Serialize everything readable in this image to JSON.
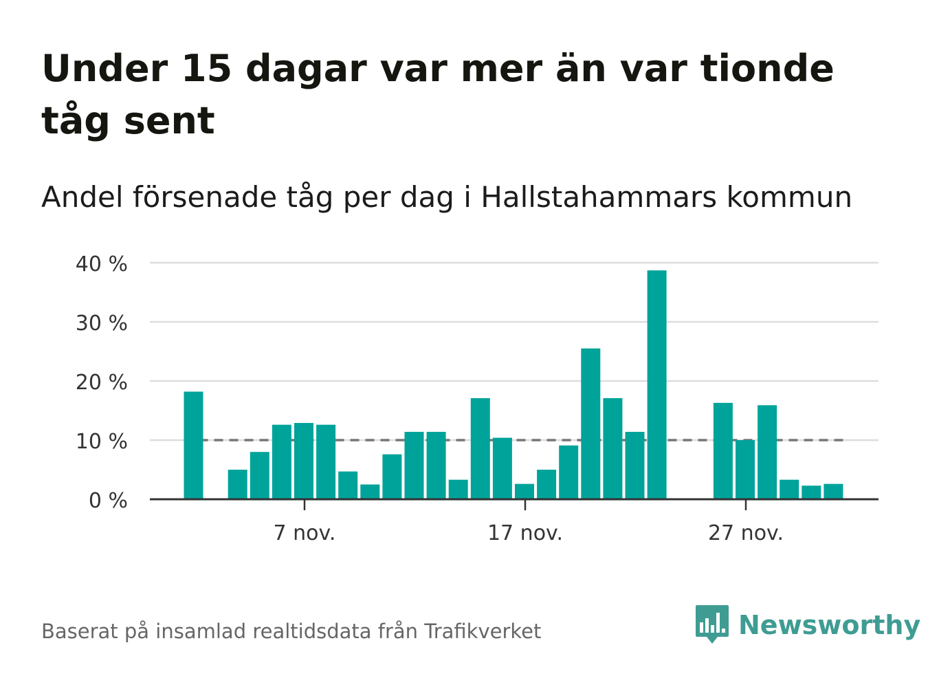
{
  "title": "Under 15 dagar var mer än var tionde tåg sent",
  "subtitle": "Andel försenade tåg per dag i Hallstahammars kommun",
  "source": "Baserat på insamlad realtidsdata från Trafikverket",
  "brand": {
    "name": "Newsworthy",
    "icon": "newsworthy-logo-icon",
    "color": "#3f9c93"
  },
  "colors": {
    "bar": "#00a39a",
    "grid": "#dddddd",
    "axis": "#333333",
    "reference": "#777777"
  },
  "chart_data": {
    "type": "bar",
    "x": [
      "2 nov.",
      "3 nov.",
      "4 nov.",
      "5 nov.",
      "6 nov.",
      "7 nov.",
      "8 nov.",
      "9 nov.",
      "10 nov.",
      "11 nov.",
      "12 nov.",
      "13 nov.",
      "14 nov.",
      "15 nov.",
      "16 nov.",
      "17 nov.",
      "18 nov.",
      "19 nov.",
      "20 nov.",
      "21 nov.",
      "22 nov.",
      "23 nov.",
      "24 nov.",
      "25 nov.",
      "26 nov.",
      "27 nov.",
      "28 nov.",
      "29 nov.",
      "30 nov.",
      "1 dec."
    ],
    "values": [
      18.2,
      null,
      5.0,
      8.0,
      12.6,
      12.9,
      12.6,
      4.7,
      2.5,
      7.6,
      11.4,
      11.4,
      3.3,
      17.1,
      10.4,
      2.6,
      5.0,
      9.1,
      25.5,
      17.1,
      11.4,
      38.7,
      null,
      null,
      16.3,
      10.0,
      15.9,
      3.3,
      2.3,
      2.6
    ],
    "x_ticks": [
      "7 nov.",
      "17 nov.",
      "27 nov."
    ],
    "y_ticks": [
      "0 %",
      "10 %",
      "20 %",
      "30 %",
      "40 %"
    ],
    "ylim": [
      0,
      40
    ],
    "reference_line": 10,
    "grid": true,
    "xlabel": "",
    "ylabel": ""
  }
}
